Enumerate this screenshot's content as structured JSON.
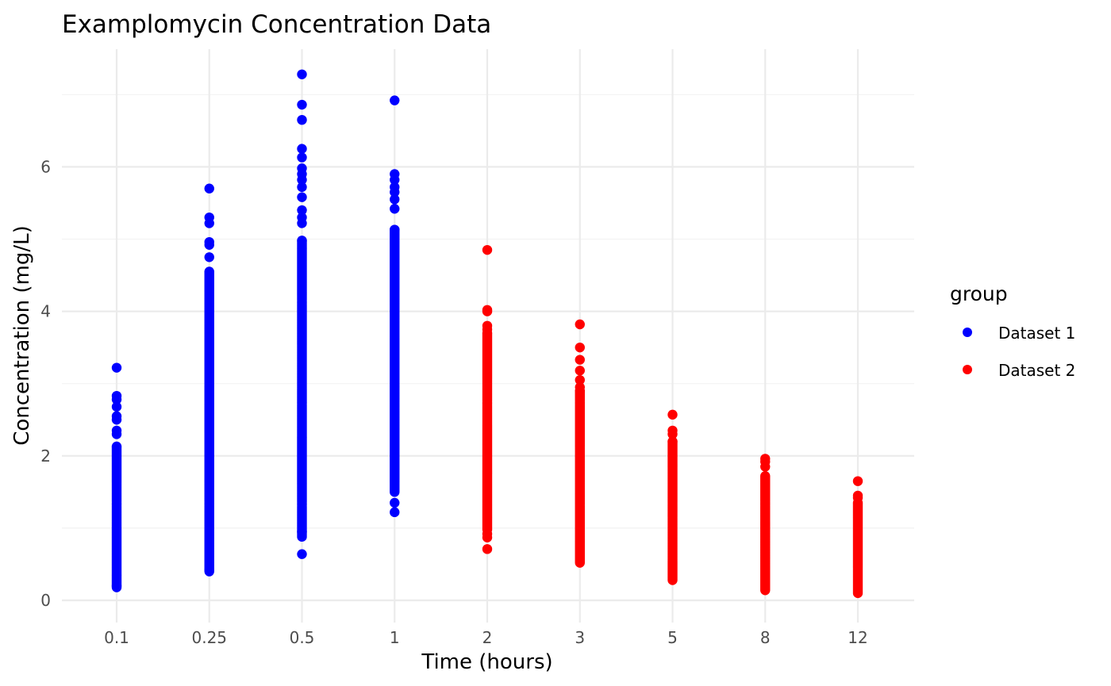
{
  "chart_data": {
    "type": "scatter",
    "title": "Examplomycin Concentration Data",
    "xlabel": "Time (hours)",
    "ylabel": "Concentration (mg/L)",
    "x_scale": "categorical",
    "categories": [
      "0.1",
      "0.25",
      "0.5",
      "1",
      "2",
      "3",
      "5",
      "8",
      "12"
    ],
    "ylim": [
      -0.3,
      7.5
    ],
    "yticks": [
      0,
      2,
      4,
      6
    ],
    "grid": true,
    "legend": {
      "title": "group",
      "position": "right"
    },
    "series": [
      {
        "name": "Dataset 1",
        "color": "#0000ff",
        "points": [
          {
            "x": "0.1",
            "min": 0.18,
            "max": 2.13,
            "outliers": [
              0.2,
              2.3,
              2.35,
              2.5,
              2.55,
              2.68,
              2.78,
              2.83,
              3.22
            ]
          },
          {
            "x": "0.25",
            "min": 0.4,
            "max": 4.55,
            "outliers": [
              0.42,
              4.75,
              4.92,
              4.96,
              5.22,
              5.3,
              5.7
            ]
          },
          {
            "x": "0.5",
            "min": 0.88,
            "max": 4.98,
            "outliers": [
              0.64,
              0.95,
              5.22,
              5.3,
              5.4,
              5.58,
              5.72,
              5.82,
              5.9,
              5.98,
              6.13,
              6.25,
              6.65,
              6.86,
              7.28
            ]
          },
          {
            "x": "1",
            "min": 1.5,
            "max": 5.13,
            "outliers": [
              1.22,
              1.35,
              5.42,
              5.55,
              5.65,
              5.72,
              5.82,
              5.9,
              6.92
            ]
          }
        ]
      },
      {
        "name": "Dataset 2",
        "color": "#ff0000",
        "points": [
          {
            "x": "2",
            "min": 0.98,
            "max": 3.7,
            "outliers": [
              0.71,
              0.87,
              0.92,
              3.75,
              3.8,
              4.0,
              4.02,
              4.85
            ]
          },
          {
            "x": "3",
            "min": 0.52,
            "max": 2.9,
            "outliers": [
              2.95,
              3.05,
              3.18,
              3.33,
              3.5,
              3.82
            ]
          },
          {
            "x": "5",
            "min": 0.28,
            "max": 2.2,
            "outliers": [
              2.3,
              2.35,
              2.57
            ]
          },
          {
            "x": "8",
            "min": 0.14,
            "max": 1.72,
            "outliers": [
              1.85,
              1.92,
              1.96
            ]
          },
          {
            "x": "12",
            "min": 0.1,
            "max": 1.35,
            "outliers": [
              1.42,
              1.45,
              1.65
            ]
          }
        ]
      }
    ]
  }
}
